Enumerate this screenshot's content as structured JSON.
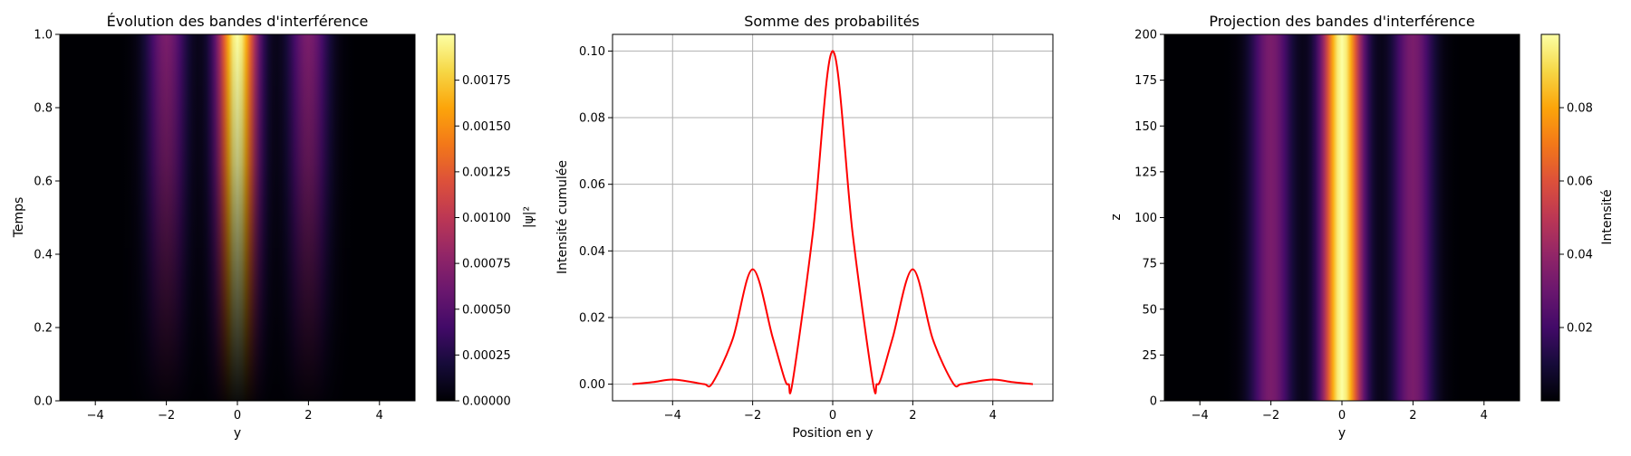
{
  "chart_data": [
    {
      "type": "heatmap",
      "title": "Évolution des bandes d'interférence",
      "xlabel": "y",
      "ylabel": "Temps",
      "xlim": [
        -5,
        5
      ],
      "ylim": [
        0,
        1
      ],
      "x_ticks": [
        -4,
        -2,
        0,
        2,
        4
      ],
      "y_ticks": [
        0.0,
        0.2,
        0.4,
        0.6,
        0.8,
        1.0
      ],
      "x_tick_labels": [
        "−4",
        "−2",
        "0",
        "2",
        "4"
      ],
      "y_tick_labels": [
        "0.0",
        "0.2",
        "0.4",
        "0.6",
        "0.8",
        "1.0"
      ],
      "colormap": "inferno",
      "colorbar": {
        "label": "|ψ|²",
        "range": [
          0,
          0.002
        ],
        "ticks": [
          0,
          0.00025,
          0.0005,
          0.00075,
          0.001,
          0.00125,
          0.0015,
          0.00175
        ],
        "tick_labels": [
          "0.00000",
          "0.00025",
          "0.00050",
          "0.00075",
          "0.00100",
          "0.00125",
          "0.00150",
          "0.00175"
        ]
      },
      "peak_value": 0.002,
      "bands": [
        {
          "center": -2,
          "relative_intensity": 0.34
        },
        {
          "center": 0,
          "relative_intensity": 1.0
        },
        {
          "center": 2,
          "relative_intensity": 0.34
        }
      ],
      "intensity_grows_with_time": true
    },
    {
      "type": "line",
      "title": "Somme des probabilités",
      "xlabel": "Position en y",
      "ylabel": "Intensité cumulée",
      "xlim": [
        -5.5,
        5.5
      ],
      "ylim": [
        -0.005,
        0.105
      ],
      "x_ticks": [
        -4,
        -2,
        0,
        2,
        4
      ],
      "y_ticks": [
        0.0,
        0.02,
        0.04,
        0.06,
        0.08,
        0.1
      ],
      "x_tick_labels": [
        "−4",
        "−2",
        "0",
        "2",
        "4"
      ],
      "y_tick_labels": [
        "0.00",
        "0.02",
        "0.04",
        "0.06",
        "0.08",
        "0.10"
      ],
      "grid": true,
      "line_color": "#ff0000",
      "x": [
        -5,
        -4.5,
        -4,
        -3.5,
        -3.2,
        -3,
        -2.5,
        -2,
        -1.5,
        -1.2,
        -1.1,
        -1,
        -0.5,
        0,
        0.5,
        1,
        1.1,
        1.2,
        1.5,
        2,
        2.5,
        3,
        3.2,
        3.5,
        4,
        4.5,
        5
      ],
      "y": [
        0.0,
        0.0006,
        0.0014,
        0.0006,
        0.0,
        0.0004,
        0.0135,
        0.0345,
        0.014,
        0.0015,
        0.0,
        0.0008,
        0.045,
        0.1,
        0.045,
        0.0008,
        0.0,
        0.0015,
        0.014,
        0.0345,
        0.0135,
        0.0004,
        0.0,
        0.0006,
        0.0014,
        0.0006,
        0.0
      ]
    },
    {
      "type": "heatmap",
      "title": "Projection des bandes d'interférence",
      "xlabel": "y",
      "ylabel": "z",
      "xlim": [
        -5,
        5
      ],
      "ylim": [
        0,
        200
      ],
      "x_ticks": [
        -4,
        -2,
        0,
        2,
        4
      ],
      "y_ticks": [
        0,
        25,
        50,
        75,
        100,
        125,
        150,
        175,
        200
      ],
      "x_tick_labels": [
        "−4",
        "−2",
        "0",
        "2",
        "4"
      ],
      "y_tick_labels": [
        "0",
        "25",
        "50",
        "75",
        "100",
        "125",
        "150",
        "175",
        "200"
      ],
      "colormap": "inferno",
      "colorbar": {
        "label": "Intensité",
        "range": [
          0,
          0.1
        ],
        "ticks": [
          0.02,
          0.04,
          0.06,
          0.08
        ],
        "tick_labels": [
          "0.02",
          "0.04",
          "0.06",
          "0.08"
        ]
      },
      "peak_value": 0.1,
      "bands": [
        {
          "center": -2,
          "relative_intensity": 0.34
        },
        {
          "center": 0,
          "relative_intensity": 1.0
        },
        {
          "center": 2,
          "relative_intensity": 0.34
        }
      ],
      "intensity_grows_with_time": false
    }
  ]
}
